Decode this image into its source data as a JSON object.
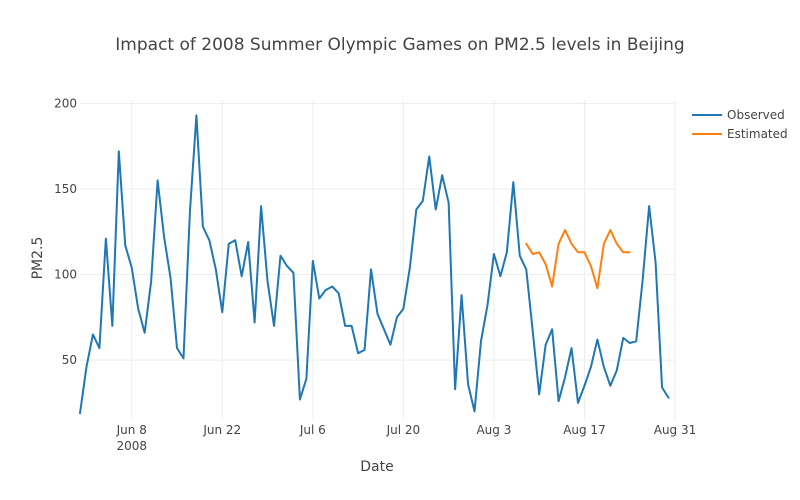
{
  "chart_data": {
    "type": "line",
    "title": "Impact of 2008 Summer Olympic Games on PM2.5 levels in Beijing",
    "xlabel": "Date",
    "ylabel": "PM2.5",
    "xlim": [
      "2008-05-31",
      "2008-08-31"
    ],
    "ylim": [
      15,
      202
    ],
    "yticks": [
      50,
      100,
      150,
      200
    ],
    "xticks": [
      {
        "date": "2008-06-08",
        "label": "Jun 8",
        "sublabel": "2008"
      },
      {
        "date": "2008-06-22",
        "label": "Jun 22"
      },
      {
        "date": "2008-07-06",
        "label": "Jul 6"
      },
      {
        "date": "2008-07-20",
        "label": "Jul 20"
      },
      {
        "date": "2008-08-03",
        "label": "Aug 3"
      },
      {
        "date": "2008-08-17",
        "label": "Aug 17"
      },
      {
        "date": "2008-08-31",
        "label": "Aug 31"
      }
    ],
    "grid": true,
    "legend_position": "top-right",
    "series": [
      {
        "name": "Observed",
        "color": "#1f77b4",
        "start_date": "2008-05-31",
        "values": [
          19,
          46,
          65,
          57,
          121,
          70,
          172,
          117,
          104,
          80,
          66,
          96,
          155,
          122,
          98,
          57,
          51,
          137,
          193,
          128,
          120,
          103,
          78,
          118,
          120,
          99,
          119,
          72,
          140,
          96,
          70,
          111,
          105,
          101,
          27,
          39,
          108,
          86,
          91,
          93,
          89,
          70,
          70,
          54,
          56,
          103,
          77,
          68,
          59,
          75,
          80,
          104,
          138,
          143,
          169,
          138,
          158,
          142,
          33,
          88,
          36,
          20,
          61,
          82,
          112,
          99,
          113,
          154,
          111,
          103,
          67,
          30,
          59,
          68,
          26,
          40,
          57,
          25,
          35,
          46,
          62,
          46,
          35,
          44,
          63,
          60,
          61,
          97,
          140,
          107,
          34,
          28
        ]
      },
      {
        "name": "Estimated",
        "color": "#ff7f0e",
        "start_date": "2008-08-08",
        "values": [
          118,
          112,
          113,
          106,
          93,
          118,
          126,
          118,
          113,
          113,
          105,
          92,
          118,
          126,
          118,
          113,
          113
        ]
      }
    ]
  }
}
